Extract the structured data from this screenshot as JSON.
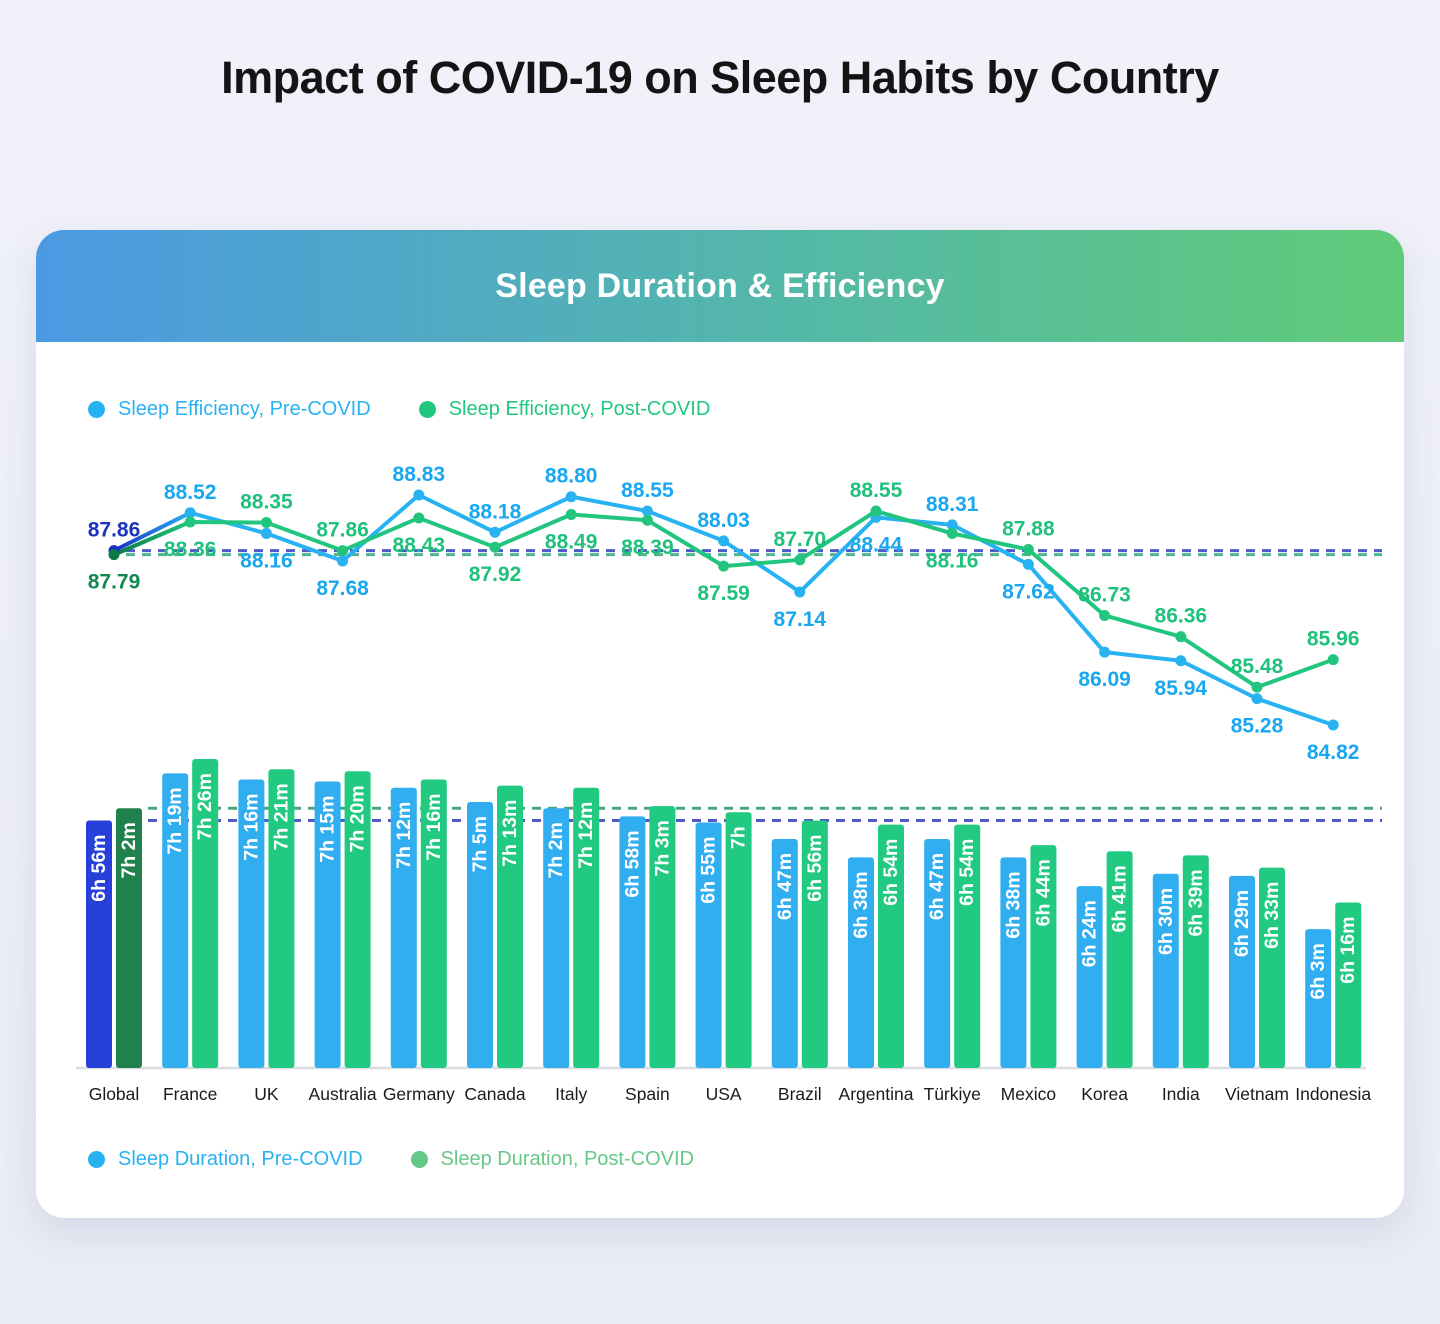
{
  "page": {
    "title": "Impact of COVID-19 on Sleep Habits by Country"
  },
  "panel": {
    "title": "Sleep Duration & Efficiency"
  },
  "legends": {
    "efficiency": [
      {
        "label": "Sleep Efficiency, Pre-COVID",
        "color": "#29b2f2"
      },
      {
        "label": "Sleep Efficiency, Post-COVID",
        "color": "#22c77f"
      }
    ],
    "duration": [
      {
        "label": "Sleep Duration, Pre-COVID",
        "color": "#29b2f2"
      },
      {
        "label": "Sleep Duration, Post-COVID",
        "color": "#66c887"
      }
    ]
  },
  "colors": {
    "pre_line": "#29b2f2",
    "post_line": "#21c57e",
    "pre_label": "#1aa7f1",
    "post_label": "#1fc17c",
    "global_pre_line": "#1c2fc4",
    "global_post_line": "#0c7a45",
    "global_pre_label": "#1c33bd",
    "global_post_label": "#0f8950",
    "pre_bar": "#31aef0",
    "post_bar": "#21ca80",
    "global_pre_bar": "#2740d9",
    "global_post_bar": "#1f814c",
    "bar_label": "#ffffff",
    "ref_blue": "#4f5bc4",
    "ref_green_line": "#52b58c",
    "ref_green_bar": "#4aa57e",
    "axis": "#dbdde2",
    "country_label": "#1b1b1b"
  },
  "chart_data": {
    "type": "combo",
    "title": "Sleep Duration & Efficiency",
    "categories": [
      "Global",
      "France",
      "UK",
      "Australia",
      "Germany",
      "Canada",
      "Italy",
      "Spain",
      "USA",
      "Brazil",
      "Argentina",
      "Türkiye",
      "Mexico",
      "Korea",
      "India",
      "Vietnam",
      "Indonesia"
    ],
    "line_series": [
      {
        "name": "Sleep Efficiency, Pre-COVID",
        "values": [
          87.86,
          88.52,
          88.16,
          87.68,
          88.83,
          88.18,
          88.8,
          88.55,
          88.03,
          87.14,
          88.44,
          88.31,
          87.62,
          86.09,
          85.94,
          85.28,
          84.82
        ]
      },
      {
        "name": "Sleep Efficiency, Post-COVID",
        "values": [
          87.79,
          88.36,
          88.35,
          87.86,
          88.43,
          87.92,
          88.49,
          88.39,
          87.59,
          87.7,
          88.55,
          88.16,
          87.88,
          86.73,
          86.36,
          85.48,
          85.96
        ]
      }
    ],
    "bar_series": [
      {
        "name": "Sleep Duration, Pre-COVID",
        "labels": [
          "6h 56m",
          "7h 19m",
          "7h 16m",
          "7h 15m",
          "7h 12m",
          "7h 5m",
          "7h 2m",
          "6h 58m",
          "6h 55m",
          "6h 47m",
          "6h 38m",
          "6h 47m",
          "6h 38m",
          "6h 24m",
          "6h 30m",
          "6h 29m",
          "6h 3m"
        ],
        "minutes": [
          416,
          439,
          436,
          435,
          432,
          425,
          422,
          418,
          415,
          407,
          398,
          407,
          398,
          384,
          390,
          389,
          363
        ]
      },
      {
        "name": "Sleep Duration, Post-COVID",
        "labels": [
          "7h 2m",
          "7h 26m",
          "7h 21m",
          "7h 20m",
          "7h 16m",
          "7h 13m",
          "7h 12m",
          "7h 3m",
          "7h",
          "6h 56m",
          "6h 54m",
          "6h 54m",
          "6h 44m",
          "6h 41m",
          "6h 39m",
          "6h 33m",
          "6h 16m"
        ],
        "minutes": [
          422,
          446,
          441,
          440,
          436,
          433,
          432,
          423,
          420,
          416,
          414,
          414,
          404,
          401,
          399,
          393,
          376
        ]
      }
    ],
    "reference_lines": {
      "efficiency_pre_global": 87.86,
      "efficiency_post_global": 87.79,
      "duration_pre_global": "6h 56m",
      "duration_post_global": "7h 2m"
    },
    "axes": {
      "efficiency_values_shown_range": [
        84.82,
        88.83
      ],
      "duration_bars_truncated": true,
      "grid": "off",
      "legend_position": {
        "efficiency": "top-left",
        "duration": "bottom-left"
      }
    }
  }
}
